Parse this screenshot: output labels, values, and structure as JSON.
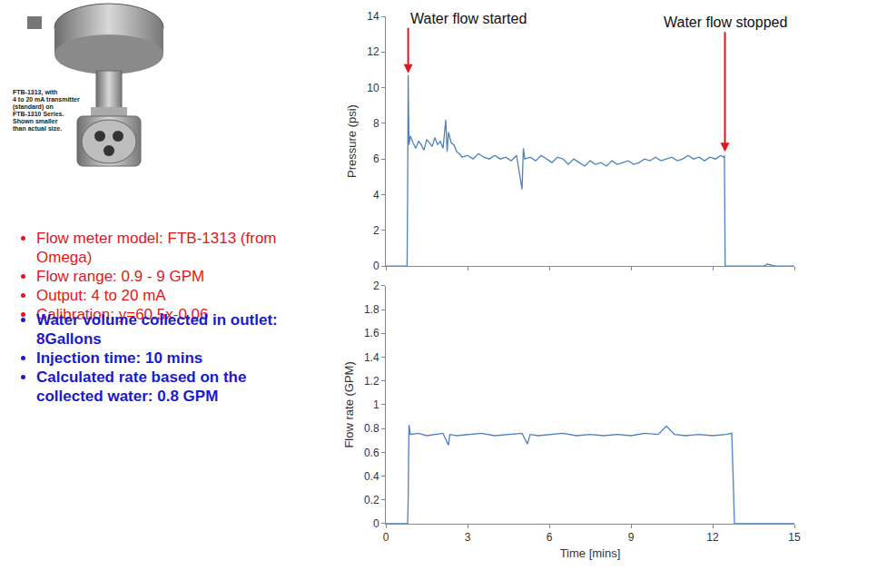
{
  "slide": {
    "caption": [
      "FTB-1313, with",
      "4 to 20 mA transmitter",
      "(standard) on",
      "FTB-1310 Series.",
      "Shown smaller",
      "than actual size."
    ],
    "specs": [
      "Flow meter model: FTB-1313 (from Omega)",
      "Flow range: 0.9 - 9 GPM",
      "Output: 4 to 20 mA",
      "Calibration: y=60.5x-0.06"
    ],
    "results": [
      "Water volume collected in outlet: 8Gallons",
      "Injection time: 10 mins",
      "Calculated rate based on the collected water: 0.8 GPM"
    ]
  },
  "chart_data": [
    {
      "type": "line",
      "ylabel": "Pressure (psi)",
      "color": "#4f81bd",
      "tick_labels": "y",
      "xlim": [
        0,
        15
      ],
      "xticks": [
        0,
        3,
        6,
        9,
        12,
        15
      ],
      "ylim": [
        0,
        14
      ],
      "yticks": [
        0,
        2,
        4,
        6,
        8,
        10,
        12,
        14
      ],
      "x": [
        0,
        0.78,
        0.8,
        0.82,
        0.85,
        0.9,
        1.0,
        1.1,
        1.2,
        1.3,
        1.4,
        1.5,
        1.6,
        1.7,
        1.8,
        1.9,
        2.0,
        2.1,
        2.2,
        2.25,
        2.3,
        2.4,
        2.5,
        2.6,
        2.7,
        2.8,
        3.0,
        3.2,
        3.4,
        3.6,
        3.8,
        4.0,
        4.2,
        4.4,
        4.6,
        4.8,
        5.0,
        5.05,
        5.1,
        5.3,
        5.5,
        5.7,
        5.9,
        6.1,
        6.3,
        6.5,
        6.7,
        6.9,
        7.1,
        7.3,
        7.5,
        7.7,
        7.9,
        8.1,
        8.3,
        8.5,
        8.7,
        8.9,
        9.1,
        9.3,
        9.5,
        9.7,
        9.9,
        10.1,
        10.3,
        10.5,
        10.7,
        10.9,
        11.1,
        11.3,
        11.5,
        11.7,
        11.9,
        12.1,
        12.3,
        12.4,
        12.43,
        12.46,
        13,
        13.9,
        14.0,
        14.3,
        15
      ],
      "values": [
        0,
        0,
        4.3,
        10.7,
        6.8,
        7.3,
        6.9,
        6.6,
        7.0,
        6.8,
        6.5,
        7.1,
        6.9,
        6.7,
        7.2,
        6.8,
        7.0,
        6.6,
        8.2,
        6.4,
        7.5,
        6.9,
        6.8,
        6.4,
        6.3,
        6.1,
        6.2,
        6.0,
        6.3,
        6.1,
        6.0,
        6.2,
        6.0,
        6.1,
        5.9,
        6.2,
        4.3,
        6.6,
        6.0,
        6.1,
        5.9,
        6.2,
        6.0,
        5.8,
        6.1,
        6.0,
        5.7,
        6.0,
        5.8,
        5.6,
        5.9,
        5.7,
        5.8,
        5.6,
        5.9,
        5.7,
        5.8,
        5.9,
        5.7,
        5.8,
        6.0,
        5.9,
        6.1,
        5.9,
        6.0,
        6.1,
        5.9,
        6.0,
        6.2,
        6.0,
        6.1,
        5.9,
        6.1,
        6.0,
        6.2,
        6.1,
        6.2,
        0,
        0,
        0,
        0.1,
        0,
        0
      ],
      "annotations": [
        {
          "text": "Water flow started",
          "x": 0.82,
          "y": 10.8
        },
        {
          "text": "Water flow stopped",
          "x": 12.45,
          "y": 6.4
        }
      ]
    },
    {
      "type": "line",
      "xlabel": "Time [mins]",
      "ylabel": "Flow rate (GPM)",
      "color": "#4f81bd",
      "xlim": [
        0,
        15
      ],
      "xticks": [
        0,
        3,
        6,
        9,
        12,
        15
      ],
      "ylim": [
        0,
        2
      ],
      "yticks": [
        0,
        0.2,
        0.4,
        0.6,
        0.8,
        1,
        1.2,
        1.4,
        1.6,
        1.8,
        2
      ],
      "x": [
        0,
        0.8,
        0.82,
        0.85,
        0.9,
        1.2,
        1.5,
        1.8,
        2.1,
        2.3,
        2.35,
        2.6,
        3,
        3.5,
        4,
        4.5,
        5,
        5.2,
        5.3,
        5.6,
        6,
        6.5,
        7,
        7.5,
        8,
        8.5,
        9,
        9.5,
        10,
        10.3,
        10.6,
        11,
        11.5,
        12,
        12.5,
        12.7,
        12.75,
        12.8,
        13,
        15
      ],
      "values": [
        0,
        0,
        0.2,
        0.83,
        0.75,
        0.76,
        0.74,
        0.75,
        0.76,
        0.66,
        0.75,
        0.74,
        0.75,
        0.76,
        0.74,
        0.75,
        0.76,
        0.67,
        0.75,
        0.74,
        0.75,
        0.76,
        0.74,
        0.75,
        0.74,
        0.75,
        0.74,
        0.76,
        0.75,
        0.82,
        0.75,
        0.74,
        0.75,
        0.74,
        0.75,
        0.76,
        0.4,
        0,
        0,
        0
      ]
    }
  ]
}
